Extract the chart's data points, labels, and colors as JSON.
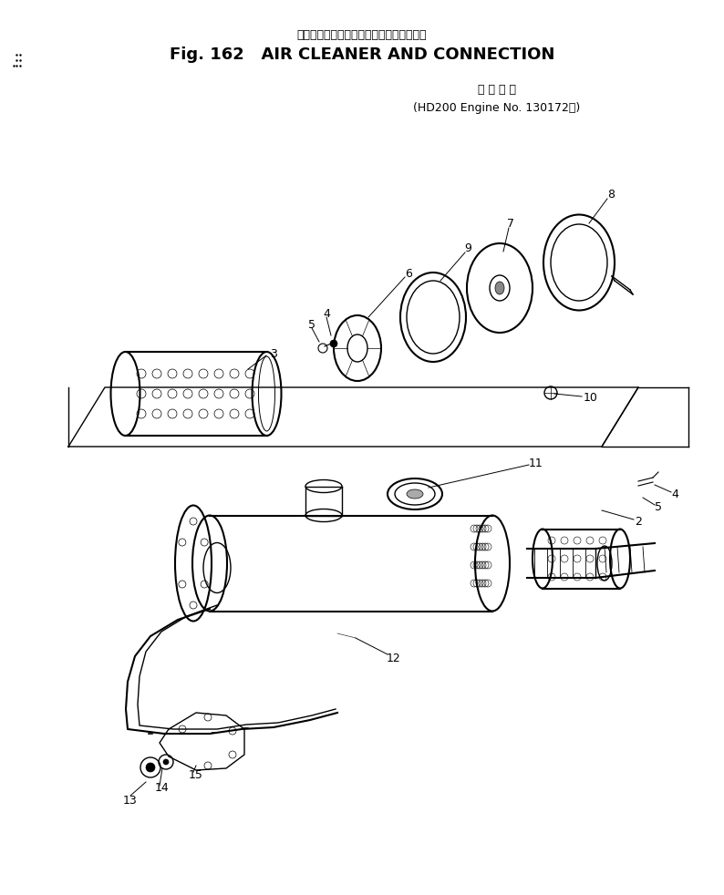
{
  "title_japanese": "エアー　クリーナ　および　コネクション",
  "title_main": "Fig. 162   AIR CLEANER AND CONNECTION",
  "subtitle_japanese": "適 用 号 機",
  "subtitle_main": "(HD200 Engine No. 130172～)",
  "bg_color": "#ffffff",
  "text_color": "#000000"
}
